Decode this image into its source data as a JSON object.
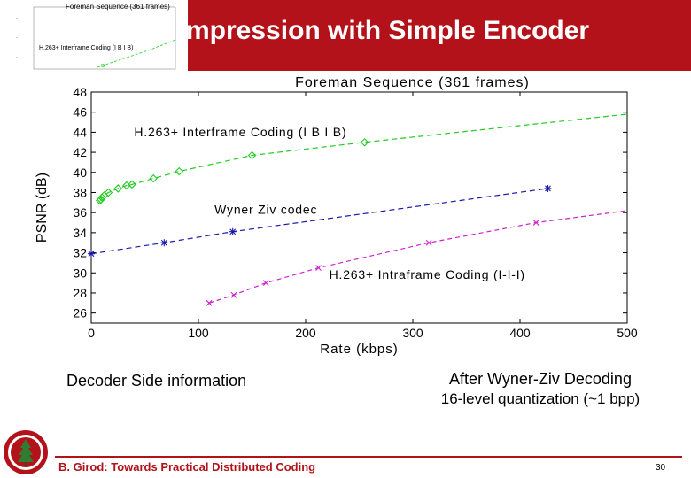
{
  "slide": {
    "title": "mpression with Simple Encoder",
    "left_caption": "Decoder Side information",
    "right_caption_line1": "After Wyner-Ziv Decoding",
    "right_caption_line2": "16-level quantization (~1 bpp)",
    "footer": "B. Girod: Towards Practical Distributed Coding",
    "page_number": "30",
    "accent_color": "#b3121b"
  },
  "thumbnail": {
    "title": "Foreman Sequence (361 frames)",
    "legend": "H.263+ Interframe Coding (I B I B)"
  },
  "chart_data": {
    "type": "line",
    "title": "Foreman Sequence (361 frames)",
    "xlabel": "Rate (kbps)",
    "ylabel": "PSNR (dB)",
    "xlim": [
      0,
      500
    ],
    "ylim": [
      25,
      48
    ],
    "x_ticks": [
      0,
      100,
      200,
      300,
      400,
      500
    ],
    "y_ticks": [
      26,
      28,
      30,
      32,
      34,
      36,
      38,
      40,
      42,
      44,
      46,
      48
    ],
    "x_tick_labels": [
      "0",
      "100",
      "200",
      "300",
      "400",
      "500"
    ],
    "y_tick_labels": [
      "26",
      "28",
      "30",
      "32",
      "34",
      "36",
      "38",
      "40",
      "42",
      "44",
      "46",
      "48"
    ],
    "grid": false,
    "series": [
      {
        "name": "H.263+ Interframe Coding (I B I B)",
        "color": "#22cc22",
        "marker": "diamond",
        "dash": "6,4",
        "x": [
          8,
          9,
          10,
          12,
          16,
          25,
          33,
          38,
          58,
          82,
          150,
          255,
          500
        ],
        "y": [
          37.2,
          37.3,
          37.5,
          37.7,
          38.0,
          38.4,
          38.7,
          38.8,
          39.4,
          40.1,
          41.7,
          43.0,
          45.8
        ],
        "marker_x": [
          8,
          9,
          10,
          12,
          16,
          25,
          33,
          38,
          58,
          82,
          150,
          255
        ]
      },
      {
        "name": "Wyner-Ziv codec",
        "color": "#1a1aaa",
        "marker": "star",
        "dash": "6,4",
        "x": [
          0,
          68,
          132,
          426
        ],
        "y": [
          31.9,
          33.0,
          34.1,
          38.4
        ],
        "marker_x": [
          0,
          68,
          132,
          426
        ]
      },
      {
        "name": "H.263+ Intraframe Coding (I-I-I)",
        "color": "#cc22cc",
        "marker": "x",
        "dash": "5,4",
        "x": [
          110,
          133,
          163,
          212,
          315,
          415,
          500
        ],
        "y": [
          27.0,
          27.8,
          29.0,
          30.5,
          33.0,
          35.0,
          36.2
        ],
        "marker_x": [
          110,
          133,
          163,
          212,
          315,
          415
        ]
      }
    ],
    "annotations": [
      {
        "text": "H.263+ Interframe Coding (I B I B)",
        "x": 40,
        "y": 43.6
      },
      {
        "text": "Wyner Ziv codec",
        "x": 115,
        "y": 35.9
      },
      {
        "text": "H.263+ Intraframe Coding (I-I-I)",
        "x": 222,
        "y": 29.4
      }
    ]
  }
}
